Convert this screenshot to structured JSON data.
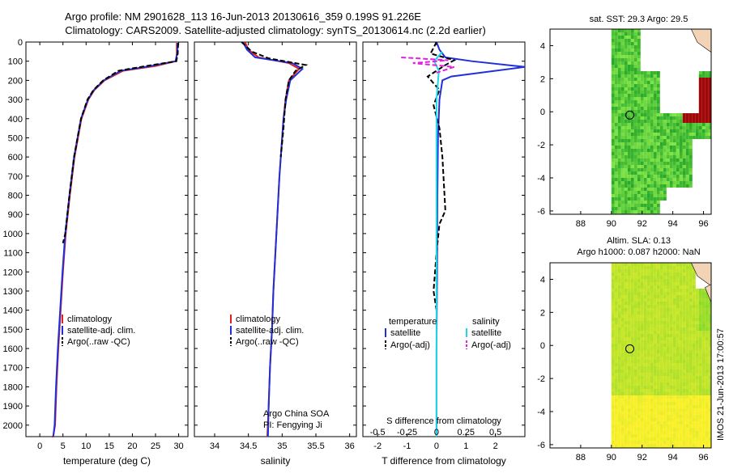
{
  "titles": {
    "line1": "Argo profile: NM 2901628_113 16-Jun-2013 20130616_359 0.199S 91.226E",
    "line2": "Climatology: CARS2009. Satellite-adjusted climatology: synTS_20130614.nc (2.2d earlier)"
  },
  "colors": {
    "climatology": "#e02020",
    "satellite": "#1f2fd9",
    "argo": "#000000",
    "salinity_sat": "#1fd7e6",
    "salinity_argo": "#e020e0"
  },
  "depth_ticks": [
    "0",
    "100",
    "200",
    "300",
    "400",
    "500",
    "600",
    "700",
    "800",
    "900",
    "1000",
    "1100",
    "1200",
    "1300",
    "1400",
    "1500",
    "1600",
    "1700",
    "1800",
    "1900",
    "2000"
  ],
  "chart_data": [
    {
      "type": "line",
      "xlabel": "temperature (deg C)",
      "xticks": [
        "0",
        "5",
        "10",
        "15",
        "20",
        "25",
        "30"
      ],
      "xlim": [
        -3,
        32
      ],
      "ylim": [
        2060,
        0
      ],
      "legend": [
        "climatology",
        "satellite-adj. clim.",
        "Argo(..raw -QC)"
      ],
      "series": [
        {
          "name": "climatology",
          "x": [
            29.6,
            29.6,
            29.4,
            25,
            18,
            14,
            11.8,
            10.5,
            9,
            7.5,
            6.5,
            5.6,
            5.0,
            4.5,
            4.0,
            3.6,
            3.3,
            2.9,
            2.6
          ],
          "y": [
            5,
            60,
            100,
            125,
            150,
            200,
            250,
            300,
            400,
            600,
            800,
            1000,
            1200,
            1400,
            1600,
            1800,
            2000,
            2060,
            2060
          ]
        },
        {
          "name": "satellite-adj. clim.",
          "x": [
            29.8,
            29.7,
            29.3,
            24,
            17.5,
            13.8,
            11.7,
            10.4,
            8.9,
            7.4,
            6.4,
            5.5,
            4.9,
            4.4,
            3.9,
            3.5,
            3.2,
            2.9
          ],
          "y": [
            5,
            60,
            100,
            125,
            150,
            200,
            250,
            300,
            400,
            600,
            800,
            1000,
            1200,
            1400,
            1600,
            1800,
            2000,
            2060
          ]
        },
        {
          "name": "Argo(..raw -QC)",
          "x": [
            29.9,
            29.8,
            29.5,
            23,
            17,
            13.7,
            11.6,
            10.3,
            8.9,
            7.4,
            6.4,
            5.5,
            5.0
          ],
          "y": [
            5,
            60,
            100,
            125,
            150,
            200,
            250,
            300,
            400,
            600,
            800,
            1000,
            1050
          ]
        }
      ]
    },
    {
      "type": "line",
      "xlabel": "salinity",
      "xticks": [
        "34",
        "34.5",
        "35",
        "35.5",
        "36"
      ],
      "xlim": [
        33.7,
        36.1
      ],
      "ylim": [
        2060,
        0
      ],
      "legend": [
        "climatology",
        "satellite-adj. clim.",
        "Argo(..raw -QC)"
      ],
      "annotation": [
        "Argo China SOA",
        "PI: Fengying Ji"
      ],
      "series": [
        {
          "name": "climatology",
          "x": [
            34.45,
            34.5,
            34.65,
            35.1,
            35.25,
            35.1,
            35.05,
            35.02,
            35.0,
            34.96,
            34.93,
            34.9,
            34.87,
            34.85,
            34.82,
            34.8,
            34.78
          ],
          "y": [
            0,
            40,
            80,
            110,
            140,
            200,
            300,
            400,
            500,
            700,
            900,
            1100,
            1300,
            1500,
            1700,
            1900,
            2060
          ]
        },
        {
          "name": "satellite-adj. clim.",
          "x": [
            34.42,
            34.48,
            34.6,
            35.15,
            35.3,
            35.12,
            35.06,
            35.02,
            35.0,
            34.96,
            34.93,
            34.9,
            34.87,
            34.85,
            34.82,
            34.8,
            34.79
          ],
          "y": [
            0,
            40,
            80,
            110,
            140,
            200,
            300,
            400,
            500,
            700,
            900,
            1100,
            1300,
            1500,
            1700,
            1900,
            2060
          ]
        },
        {
          "name": "Argo(..raw -QC)",
          "x": [
            34.4,
            34.55,
            34.8,
            35.35,
            35.2,
            35.1,
            35.05,
            35.02,
            34.98
          ],
          "y": [
            0,
            50,
            85,
            120,
            150,
            200,
            300,
            450,
            600
          ]
        }
      ]
    },
    {
      "type": "line",
      "xlabel": "T difference from climatology",
      "xlabel_top": "S difference from climatology",
      "xticks": [
        "-2",
        "-1",
        "0",
        "1",
        "2"
      ],
      "xticks_top": [
        "-0.5",
        "-0.25",
        "0",
        "0.25",
        "0.5"
      ],
      "xlim": [
        -2.5,
        3.0
      ],
      "ylim": [
        2060,
        0
      ],
      "legend_temperature": {
        "title": "temperature",
        "items": [
          "satellite",
          "Argo(-adj)"
        ]
      },
      "legend_salinity": {
        "title": "salinity",
        "items": [
          "satellite",
          "Argo(-adj)"
        ]
      },
      "series": [
        {
          "name": "temperature satellite",
          "x": [
            0,
            0.1,
            0.3,
            1.2,
            3.0,
            1.0,
            0.5,
            0.2,
            0.1,
            0.05,
            0.03,
            0.02,
            0,
            0
          ],
          "y": [
            0,
            40,
            80,
            100,
            130,
            170,
            180,
            200,
            300,
            500,
            800,
            1200,
            1600,
            2060
          ]
        },
        {
          "name": "temperature Argo(-adj)",
          "x": [
            0,
            -0.2,
            0.6,
            0.3,
            -0.3,
            0.1,
            -0.1,
            0.1,
            0.2,
            0.3,
            0.1,
            0,
            -0.1,
            0
          ],
          "y": [
            0,
            60,
            95,
            120,
            180,
            250,
            330,
            450,
            600,
            880,
            950,
            1100,
            1300,
            1400
          ]
        },
        {
          "name": "salinity satellite",
          "x": [
            0.05,
            -0.02,
            0.02,
            0,
            0,
            0,
            0
          ],
          "y": [
            50,
            100,
            150,
            300,
            800,
            1400,
            2060
          ]
        },
        {
          "name": "salinity Argo(-adj)",
          "x": [
            -0.3,
            0.1,
            -0.2,
            0.15,
            0
          ],
          "y": [
            80,
            95,
            110,
            130,
            160
          ]
        }
      ]
    }
  ],
  "maps": {
    "sst": {
      "title1": "sat. SST: 29.3 Argo: 29.5",
      "yticks": [
        "4",
        "2",
        "0",
        "-2",
        "-4",
        "-6"
      ],
      "xticks": [
        "88",
        "90",
        "92",
        "94",
        "96"
      ],
      "marker_lon": 91.2,
      "marker_lat": -0.2
    },
    "sla": {
      "title1": "Altim. SLA: 0.13",
      "title2": "Argo h1000: 0.087 h2000: NaN",
      "yticks": [
        "4",
        "2",
        "0",
        "-2",
        "-4",
        "-6"
      ],
      "xticks": [
        "88",
        "90",
        "92",
        "94",
        "96"
      ],
      "marker_lon": 91.2,
      "marker_lat": -0.2
    }
  },
  "footer": "IMOS 21-Jun-2013 17:00:57"
}
